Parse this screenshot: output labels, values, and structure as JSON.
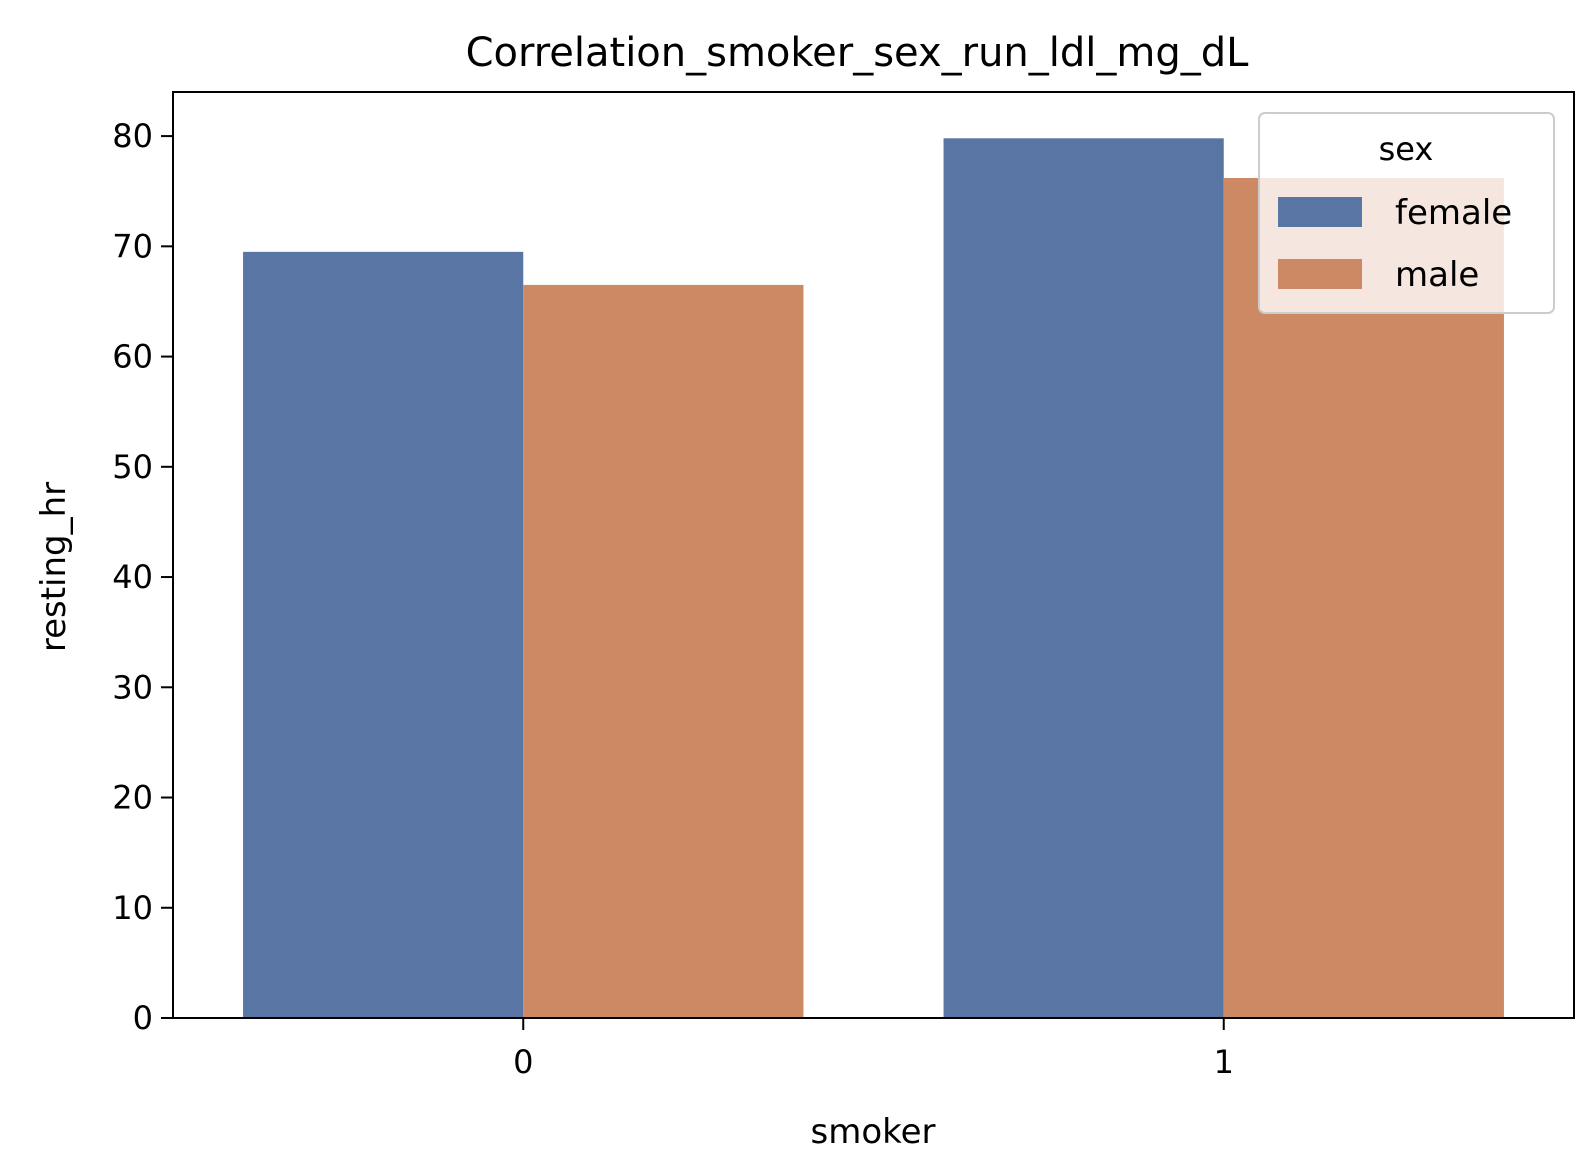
{
  "chart_data": {
    "type": "bar",
    "title": "Correlation_smoker_sex_run_ldl_mg_dL",
    "xlabel": "smoker",
    "ylabel": "resting_hr",
    "categories": [
      "0",
      "1"
    ],
    "series": [
      {
        "name": "female",
        "values": [
          69.5,
          79.8
        ],
        "color": "#5975a4"
      },
      {
        "name": "male",
        "values": [
          66.5,
          76.2
        ],
        "color": "#cc8963"
      }
    ],
    "ylim": [
      0,
      84
    ],
    "yticks": [
      0,
      10,
      20,
      30,
      40,
      50,
      60,
      70,
      80
    ],
    "grid": false,
    "legend": {
      "title": "sex",
      "position": "top-right"
    }
  }
}
